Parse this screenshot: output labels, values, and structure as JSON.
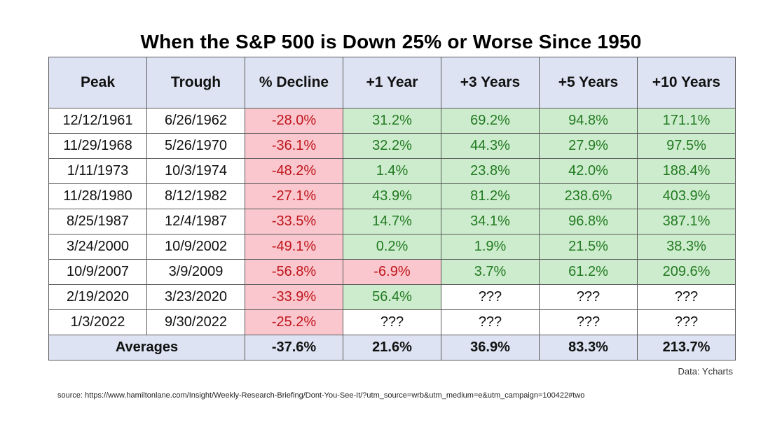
{
  "chart_data": {
    "type": "table",
    "title": "When the S&P 500 is Down 25% or Worse Since 1950",
    "columns": [
      "Peak",
      "Trough",
      "% Decline",
      "+1 Year",
      "+3 Years",
      "+5 Years",
      "+10 Years"
    ],
    "rows": [
      [
        "12/12/1961",
        "6/26/1962",
        "-28.0%",
        "31.2%",
        "69.2%",
        "94.8%",
        "171.1%"
      ],
      [
        "11/29/1968",
        "5/26/1970",
        "-36.1%",
        "32.2%",
        "44.3%",
        "27.9%",
        "97.5%"
      ],
      [
        "1/11/1973",
        "10/3/1974",
        "-48.2%",
        "1.4%",
        "23.8%",
        "42.0%",
        "188.4%"
      ],
      [
        "11/28/1980",
        "8/12/1982",
        "-27.1%",
        "43.9%",
        "81.2%",
        "238.6%",
        "403.9%"
      ],
      [
        "8/25/1987",
        "12/4/1987",
        "-33.5%",
        "14.7%",
        "34.1%",
        "96.8%",
        "387.1%"
      ],
      [
        "3/24/2000",
        "10/9/2002",
        "-49.1%",
        "0.2%",
        "1.9%",
        "21.5%",
        "38.3%"
      ],
      [
        "10/9/2007",
        "3/9/2009",
        "-56.8%",
        "-6.9%",
        "3.7%",
        "61.2%",
        "209.6%"
      ],
      [
        "2/19/2020",
        "3/23/2020",
        "-33.9%",
        "56.4%",
        "???",
        "???",
        "???"
      ],
      [
        "1/3/2022",
        "9/30/2022",
        "-25.2%",
        "???",
        "???",
        "???",
        "???"
      ]
    ],
    "averages": {
      "label": "Averages",
      "values": [
        "-37.6%",
        "21.6%",
        "36.9%",
        "83.3%",
        "213.7%"
      ]
    }
  },
  "credit": "Data: Ycharts",
  "source": "source: https://www.hamiltonlane.com/Insight/Weekly-Research-Briefing/Dont-You-See-It/?utm_source=wrb&utm_medium=e&utm_campaign=100422#two",
  "colors": {
    "header_bg": "#dde3f2",
    "positive_bg": "#cdeccd",
    "positive_text": "#217a21",
    "negative_bg": "#f9c7cd",
    "negative_text": "#c0141b"
  }
}
